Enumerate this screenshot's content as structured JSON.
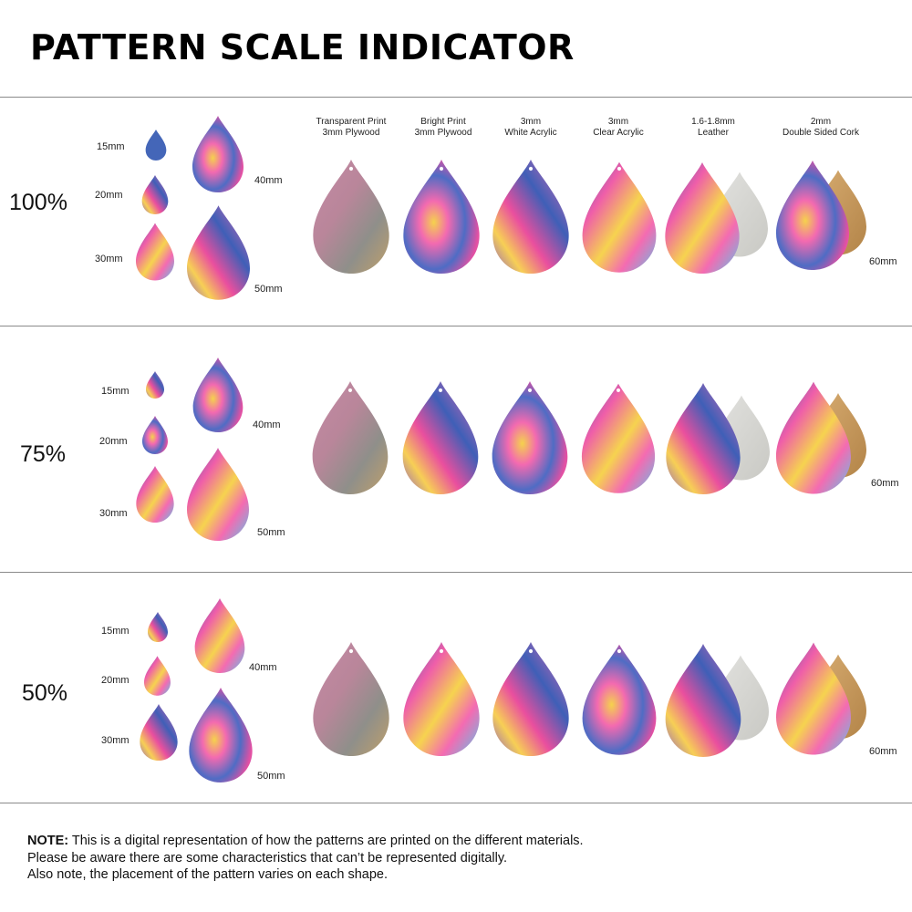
{
  "title": "PATTERN SCALE INDICATOR",
  "materials": [
    {
      "line1": "Transparent Print",
      "line2": "3mm Plywood"
    },
    {
      "line1": "Bright Print",
      "line2": "3mm Plywood"
    },
    {
      "line1": "3mm",
      "line2": "White Acrylic"
    },
    {
      "line1": "3mm",
      "line2": "Clear Acrylic"
    },
    {
      "line1": "1.6-1.8mm",
      "line2": "Leather"
    },
    {
      "line1": "2mm",
      "line2": "Double Sided Cork"
    }
  ],
  "sections": [
    {
      "scale": "100%",
      "size_labels": [
        "15mm",
        "20mm",
        "30mm",
        "40mm",
        "50mm",
        "60mm"
      ]
    },
    {
      "scale": "75%",
      "size_labels": [
        "15mm",
        "20mm",
        "30mm",
        "40mm",
        "50mm",
        "60mm"
      ]
    },
    {
      "scale": "50%",
      "size_labels": [
        "15mm",
        "20mm",
        "30mm",
        "40mm",
        "50mm",
        "60mm"
      ]
    }
  ],
  "note": {
    "lead": "NOTE:",
    "line1": " This is a digital representation of how the patterns are printed on the different materials.",
    "line2": "Please be aware there are some characteristics that can’t be represented digitally.",
    "line3": "Also note, the placement of the pattern varies on each shape."
  },
  "colors": {
    "pink": "#f05aa8",
    "blue": "#3f5fb5",
    "yellow": "#f3d24a",
    "cyan": "#5bc2ea",
    "purple": "#8a5cc4",
    "leather": "#d8d8d4",
    "cork": "#c89a5e"
  }
}
